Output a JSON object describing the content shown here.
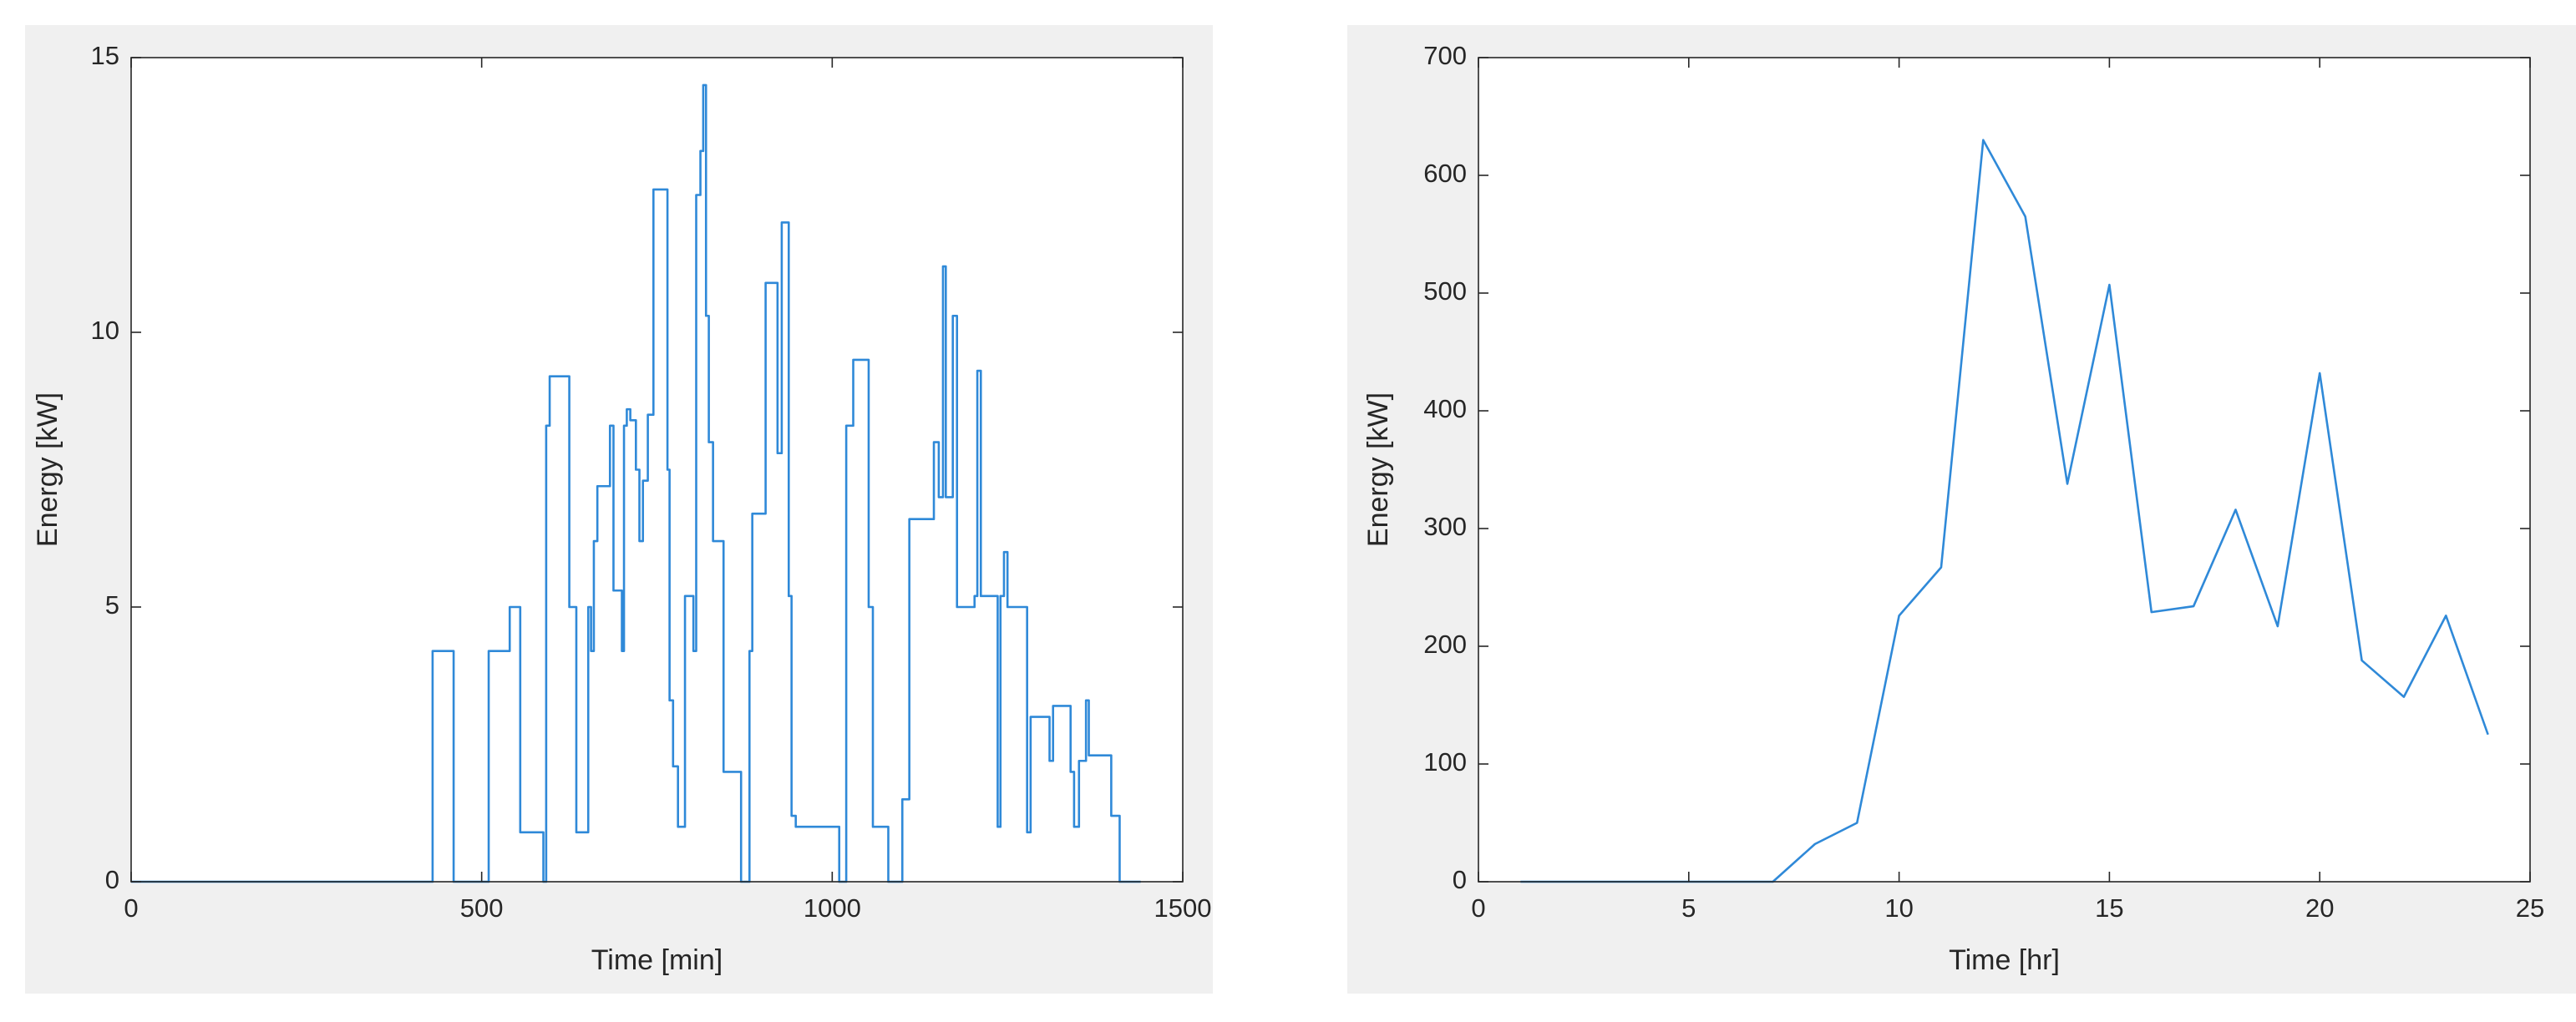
{
  "chart_data": [
    {
      "type": "line",
      "xlabel": "Time [min]",
      "ylabel": "Energy [kW]",
      "color": "#2f89d8",
      "xlim": [
        0,
        1500
      ],
      "ylim": [
        0,
        15
      ],
      "xticks": [
        0,
        500,
        1000,
        1500
      ],
      "yticks": [
        0,
        5,
        10,
        15
      ],
      "x": [
        0,
        430,
        430,
        460,
        460,
        510,
        510,
        540,
        540,
        555,
        555,
        588,
        588,
        592,
        592,
        597,
        597,
        625,
        625,
        635,
        635,
        652,
        652,
        656,
        656,
        660,
        660,
        665,
        665,
        683,
        683,
        688,
        688,
        700,
        700,
        703,
        703,
        707,
        707,
        712,
        712,
        720,
        720,
        725,
        725,
        730,
        730,
        737,
        737,
        745,
        745,
        765,
        765,
        768,
        768,
        773,
        773,
        780,
        780,
        784,
        784,
        790,
        790,
        802,
        802,
        806,
        806,
        812,
        812,
        816,
        816,
        820,
        820,
        824,
        824,
        830,
        830,
        845,
        845,
        870,
        870,
        882,
        882,
        886,
        886,
        905,
        905,
        922,
        922,
        928,
        928,
        938,
        938,
        942,
        942,
        948,
        948,
        1010,
        1010,
        1020,
        1020,
        1030,
        1030,
        1052,
        1052,
        1058,
        1058,
        1080,
        1080,
        1100,
        1100,
        1110,
        1110,
        1145,
        1145,
        1152,
        1152,
        1158,
        1158,
        1162,
        1162,
        1172,
        1172,
        1178,
        1178,
        1203,
        1203,
        1207,
        1207,
        1212,
        1212,
        1236,
        1236,
        1240,
        1240,
        1245,
        1245,
        1250,
        1250,
        1255,
        1255,
        1278,
        1278,
        1283,
        1283,
        1310,
        1310,
        1315,
        1315,
        1340,
        1340,
        1345,
        1345,
        1352,
        1352,
        1362,
        1362,
        1366,
        1366,
        1370,
        1370,
        1398,
        1398,
        1410,
        1410,
        1440
      ],
      "values": [
        0,
        0,
        4.2,
        4.2,
        0,
        0,
        4.2,
        4.2,
        5,
        5,
        0.9,
        0.9,
        0,
        0,
        8.3,
        8.3,
        9.2,
        9.2,
        5,
        5,
        0.9,
        0.9,
        5,
        5,
        4.2,
        4.2,
        6.2,
        6.2,
        7.2,
        7.2,
        8.3,
        8.3,
        5.3,
        5.3,
        4.2,
        4.2,
        8.3,
        8.3,
        8.6,
        8.6,
        8.4,
        8.4,
        7.5,
        7.5,
        6.2,
        6.2,
        7.3,
        7.3,
        8.5,
        8.5,
        12.6,
        12.6,
        7.5,
        7.5,
        3.3,
        3.3,
        2.1,
        2.1,
        1,
        1,
        1,
        1,
        5.2,
        5.2,
        4.2,
        4.2,
        12.5,
        12.5,
        13.3,
        13.3,
        14.5,
        14.5,
        10.3,
        10.3,
        8,
        8,
        6.2,
        6.2,
        2,
        2,
        0,
        0,
        4.2,
        4.2,
        6.7,
        6.7,
        10.9,
        10.9,
        7.8,
        7.8,
        12,
        12,
        5.2,
        5.2,
        1.2,
        1.2,
        1,
        1,
        0,
        0,
        8.3,
        8.3,
        9.5,
        9.5,
        5,
        5,
        1,
        1,
        0,
        0,
        1.5,
        1.5,
        6.6,
        6.6,
        8,
        8,
        7,
        7,
        11.2,
        11.2,
        7,
        7,
        10.3,
        10.3,
        5,
        5,
        5.2,
        5.2,
        9.3,
        9.3,
        5.2,
        5.2,
        1,
        1,
        5.2,
        5.2,
        6,
        6,
        5,
        5,
        5,
        5,
        0.9,
        0.9,
        3,
        3,
        2.2,
        2.2,
        3.2,
        3.2,
        2,
        2,
        1,
        1,
        2.2,
        2.2,
        3.3,
        3.3,
        2.3,
        2.3,
        2.3,
        2.3,
        1.2,
        1.2,
        0,
        0
      ]
    },
    {
      "type": "line",
      "xlabel": "Time [hr]",
      "ylabel": "Energy [kW]",
      "color": "#2f89d8",
      "xlim": [
        0,
        25
      ],
      "ylim": [
        0,
        700
      ],
      "xticks": [
        0,
        5,
        10,
        15,
        20,
        25
      ],
      "yticks": [
        0,
        100,
        200,
        300,
        400,
        500,
        600,
        700
      ],
      "x": [
        1,
        2,
        3,
        4,
        5,
        6,
        7,
        8,
        9,
        10,
        11,
        12,
        13,
        14,
        15,
        16,
        17,
        18,
        19,
        20,
        21,
        22,
        23,
        24
      ],
      "values": [
        0,
        0,
        0,
        0,
        0,
        0,
        0,
        32,
        50,
        226,
        267,
        630,
        565,
        338,
        507,
        229,
        234,
        316,
        217,
        432,
        188,
        157,
        226,
        125
      ]
    }
  ]
}
